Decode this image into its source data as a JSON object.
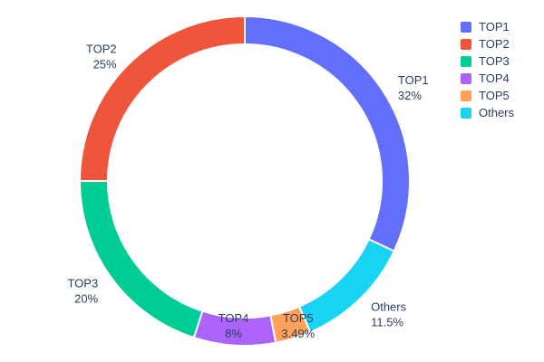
{
  "figure": {
    "background": "#ffffff",
    "text_color": "#2a3f5f"
  },
  "chart_data": {
    "type": "pie",
    "subtype": "donut",
    "hole": 0.83,
    "rotation_deg": 0,
    "direction": "clockwise",
    "title": "",
    "slices": [
      {
        "label": "TOP1",
        "value": 32,
        "display_percent": "32%",
        "color": "#636efa"
      },
      {
        "label": "Others",
        "value": 11.5,
        "display_percent": "11.5%",
        "color": "#19d3f3"
      },
      {
        "label": "TOP5",
        "value": 3.49,
        "display_percent": "3.49%",
        "color": "#ffa15a"
      },
      {
        "label": "TOP4",
        "value": 8,
        "display_percent": "8%",
        "color": "#ab63fa"
      },
      {
        "label": "TOP3",
        "value": 20,
        "display_percent": "20%",
        "color": "#00cc96"
      },
      {
        "label": "TOP2",
        "value": 25,
        "display_percent": "25%",
        "color": "#ef553b"
      }
    ],
    "legend": {
      "position": "top-right",
      "items": [
        {
          "label": "TOP1",
          "color": "#636efa"
        },
        {
          "label": "TOP2",
          "color": "#ef553b"
        },
        {
          "label": "TOP3",
          "color": "#00cc96"
        },
        {
          "label": "TOP4",
          "color": "#ab63fa"
        },
        {
          "label": "TOP5",
          "color": "#ffa15a"
        },
        {
          "label": "Others",
          "color": "#19d3f3"
        }
      ]
    }
  }
}
